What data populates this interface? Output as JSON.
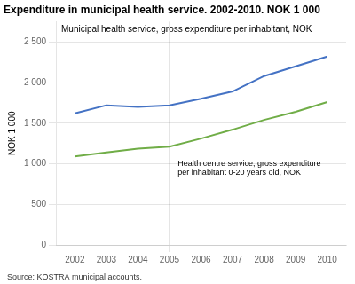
{
  "chart_data": {
    "type": "line",
    "title": "Expenditure in municipal health service. 2002-2010. NOK 1 000",
    "ylabel": "NOK 1 000",
    "x": [
      2002,
      2003,
      2004,
      2005,
      2006,
      2007,
      2008,
      2009,
      2010
    ],
    "series": [
      {
        "color": "#4472C4",
        "values": [
          1620,
          1720,
          1700,
          1720,
          1800,
          1890,
          2080,
          2200,
          2320
        ]
      },
      {
        "color": "#70AD47",
        "values": [
          1090,
          1140,
          1185,
          1210,
          1310,
          1420,
          1540,
          1640,
          1760
        ]
      }
    ],
    "xlim": [
      2001.4,
      2010.6
    ],
    "xticks": [
      2002,
      2003,
      2004,
      2005,
      2006,
      2007,
      2008,
      2009,
      2010
    ],
    "ylim": [
      0,
      2750
    ],
    "yticks": [
      0,
      500,
      {
        "value": 1000,
        "label": "1 000"
      },
      {
        "value": 1500,
        "label": "1 500"
      },
      {
        "value": 2000,
        "label": "2 000"
      },
      {
        "value": 2500,
        "label": "2 500"
      }
    ],
    "grid": true,
    "annotations": [
      "Municipal health service, gross expenditure per inhabitant, NOK",
      "Health centre service, gross expenditure",
      "per inhabitant 0-20 years old, NOK",
      "Source: KOSTRA municipal accounts."
    ]
  }
}
